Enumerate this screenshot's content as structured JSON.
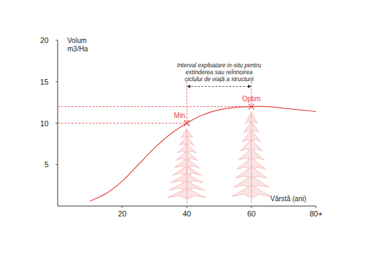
{
  "chart_data": {
    "type": "line",
    "ylabel": [
      "Volum",
      "m3/Ha"
    ],
    "xlabel": "Vârstă (ani)",
    "x": [
      10,
      15,
      20,
      25,
      30,
      35,
      40,
      45,
      50,
      55,
      60,
      65,
      70,
      75,
      80
    ],
    "values": [
      0.6,
      1.5,
      3,
      5,
      7,
      8.7,
      10,
      11,
      11.6,
      11.9,
      12,
      12,
      11.8,
      11.6,
      11.4
    ],
    "color": "#e2403c",
    "xlim": [
      0,
      80
    ],
    "ylim": [
      0,
      20
    ],
    "xticks": [
      20,
      40,
      60,
      {
        "value": 80,
        "label": "80+"
      }
    ],
    "yticks": [
      5,
      10,
      15,
      20
    ],
    "grid": false,
    "annotations": {
      "points": [
        {
          "label": "Min.",
          "x": 40,
          "y": 10
        },
        {
          "label": "Optim",
          "x": 60,
          "y": 12
        }
      ],
      "interval": {
        "text": [
          "Interval exploatare in-situ pentru",
          "extinderea sau reînnoirea",
          "ciclului de viață a structurii"
        ],
        "start": 40,
        "end": 60
      }
    }
  }
}
